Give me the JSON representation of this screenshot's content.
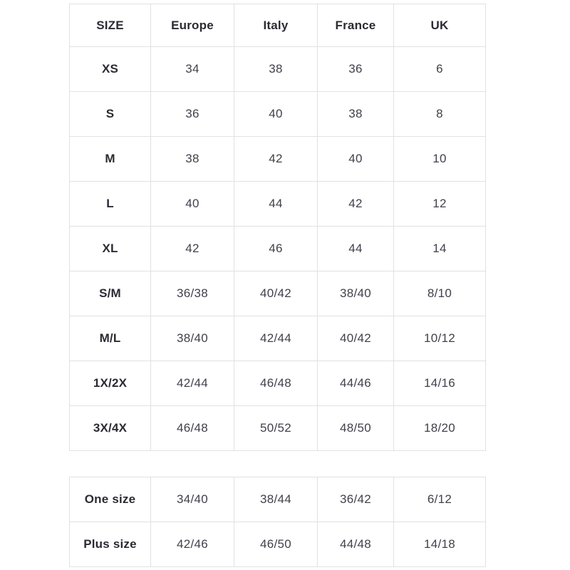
{
  "size_chart": {
    "columns": [
      "SIZE",
      "Europe",
      "Italy",
      "France",
      "UK"
    ],
    "rows": [
      [
        "XS",
        "34",
        "38",
        "36",
        "6"
      ],
      [
        "S",
        "36",
        "40",
        "38",
        "8"
      ],
      [
        "M",
        "38",
        "42",
        "40",
        "10"
      ],
      [
        "L",
        "40",
        "44",
        "42",
        "12"
      ],
      [
        "XL",
        "42",
        "46",
        "44",
        "14"
      ],
      [
        "S/M",
        "36/38",
        "40/42",
        "38/40",
        "8/10"
      ],
      [
        "M/L",
        "38/40",
        "42/44",
        "40/42",
        "10/12"
      ],
      [
        "1X/2X",
        "42/44",
        "46/48",
        "44/46",
        "14/16"
      ],
      [
        "3X/4X",
        "46/48",
        "50/52",
        "48/50",
        "18/20"
      ]
    ]
  },
  "special_sizes": {
    "rows": [
      [
        "One size",
        "34/40",
        "38/44",
        "36/42",
        "6/12"
      ],
      [
        "Plus size",
        "42/46",
        "46/50",
        "44/48",
        "14/18"
      ]
    ]
  },
  "colors": {
    "background": "#ffffff",
    "border": "#e0e1e4",
    "header_text": "#2a2b33",
    "value_text": "#40414b"
  }
}
